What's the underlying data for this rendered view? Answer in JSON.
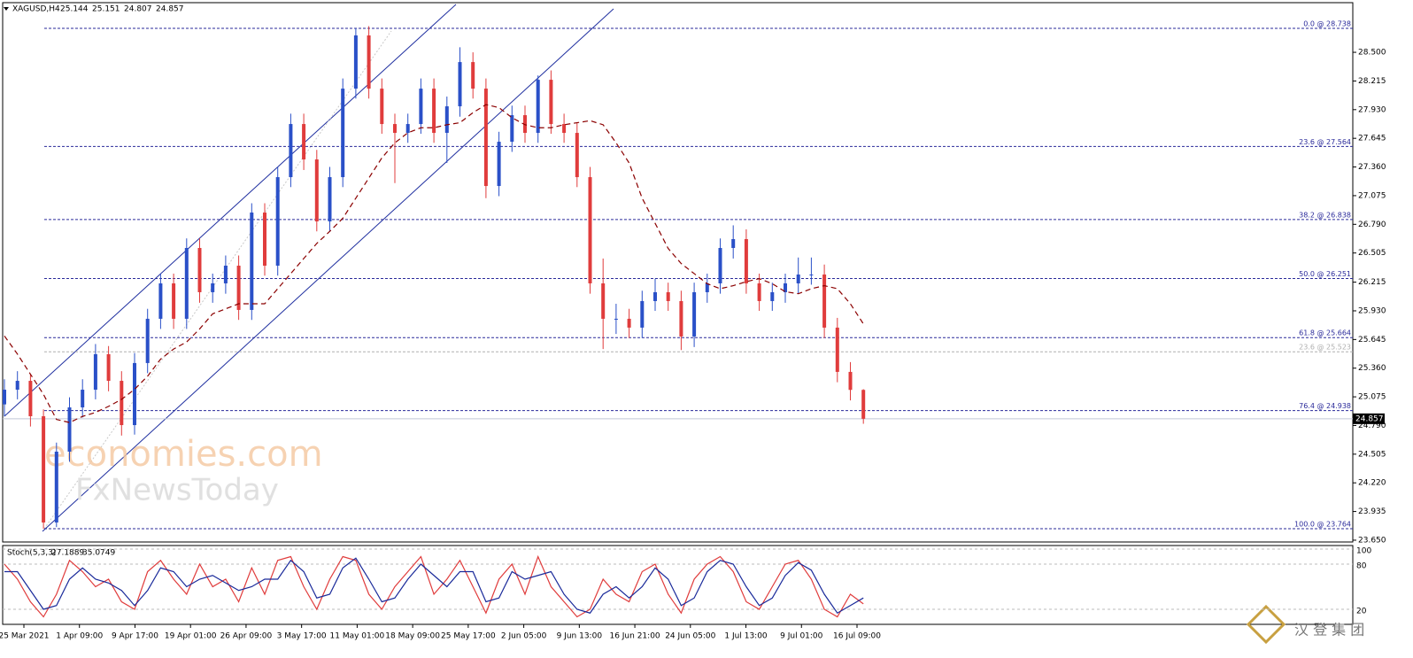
{
  "chart_data": [
    {
      "type": "candlestick",
      "title": "XAGUSD,H4",
      "header_values": [
        25.144,
        25.151,
        24.807,
        24.857
      ],
      "up_color": "#2a50c8",
      "down_color": "#e03c3c",
      "open": [
        25.0,
        25.146,
        25.234,
        24.882,
        23.826,
        24.53,
        24.97,
        25.146,
        25.499,
        25.234,
        24.794,
        25.411,
        25.851,
        26.203,
        25.851,
        26.555,
        26.115,
        26.203,
        26.379,
        25.939,
        26.907,
        26.379,
        27.259,
        27.787,
        27.435,
        26.819,
        27.259,
        28.139,
        28.668,
        28.139,
        27.787,
        27.699,
        27.787,
        28.139,
        27.699,
        27.963,
        28.403,
        28.139,
        27.171,
        27.611,
        27.875,
        27.699,
        28.227,
        27.787,
        27.699,
        27.259,
        26.203,
        25.851,
        25.851,
        25.763,
        26.027,
        26.115,
        26.027,
        25.675,
        26.115,
        26.203,
        26.555,
        26.643,
        26.203,
        26.027,
        26.115,
        26.203,
        26.291,
        26.291,
        25.763,
        25.323,
        25.144
      ],
      "high": [
        25.25,
        25.33,
        25.3,
        24.95,
        24.62,
        25.07,
        25.25,
        25.6,
        25.58,
        25.33,
        25.51,
        25.95,
        26.3,
        26.3,
        26.65,
        26.65,
        26.3,
        26.48,
        26.48,
        27.0,
        27.0,
        27.36,
        27.89,
        27.89,
        27.53,
        27.36,
        28.24,
        28.738,
        28.76,
        28.24,
        27.89,
        27.89,
        28.24,
        28.24,
        28.06,
        28.55,
        28.5,
        28.24,
        27.71,
        27.97,
        27.97,
        28.27,
        28.32,
        27.89,
        27.8,
        27.36,
        26.45,
        26.0,
        25.95,
        26.13,
        26.25,
        26.21,
        26.13,
        26.21,
        26.3,
        26.65,
        26.78,
        26.74,
        26.3,
        26.21,
        26.3,
        26.46,
        26.46,
        26.39,
        25.86,
        25.42,
        25.151
      ],
      "low": [
        24.88,
        25.05,
        24.78,
        23.764,
        23.78,
        24.43,
        24.87,
        25.05,
        25.13,
        24.69,
        24.7,
        25.31,
        25.75,
        25.75,
        25.75,
        26.01,
        26.01,
        26.1,
        25.84,
        25.84,
        26.28,
        26.28,
        27.16,
        27.33,
        26.72,
        26.72,
        27.16,
        28.04,
        28.04,
        27.69,
        27.2,
        27.6,
        27.69,
        27.6,
        27.4,
        27.86,
        28.04,
        27.05,
        27.07,
        27.51,
        27.6,
        27.6,
        27.69,
        27.6,
        27.16,
        26.1,
        25.55,
        25.7,
        25.66,
        25.66,
        25.93,
        25.93,
        25.54,
        25.57,
        26.01,
        26.1,
        26.45,
        26.1,
        25.93,
        25.93,
        26.01,
        26.1,
        26.19,
        25.66,
        25.22,
        25.04,
        24.807
      ],
      "close": [
        25.146,
        25.234,
        24.882,
        23.826,
        24.53,
        24.97,
        25.146,
        25.499,
        25.234,
        24.794,
        25.411,
        25.851,
        26.203,
        25.851,
        26.555,
        26.115,
        26.203,
        26.379,
        25.939,
        26.907,
        26.379,
        27.259,
        27.787,
        27.435,
        26.819,
        27.259,
        28.139,
        28.668,
        28.139,
        27.787,
        27.699,
        27.787,
        28.139,
        27.699,
        27.963,
        28.403,
        28.139,
        27.171,
        27.611,
        27.875,
        27.699,
        28.227,
        27.787,
        27.699,
        27.259,
        26.203,
        25.851,
        25.851,
        25.763,
        26.027,
        26.115,
        26.027,
        25.675,
        26.115,
        26.203,
        26.555,
        26.643,
        26.203,
        26.027,
        26.115,
        26.203,
        26.291,
        26.291,
        25.763,
        25.323,
        25.144,
        24.857
      ],
      "ma": {
        "color": "#8b0000",
        "values": [
          25.68,
          25.5,
          25.3,
          25.1,
          24.85,
          24.82,
          24.88,
          24.92,
          24.98,
          25.05,
          25.15,
          25.28,
          25.45,
          25.55,
          25.62,
          25.75,
          25.9,
          25.95,
          26.0,
          26.0,
          26.0,
          26.15,
          26.3,
          26.45,
          26.6,
          26.72,
          26.85,
          27.05,
          27.25,
          27.45,
          27.6,
          27.7,
          27.75,
          27.75,
          27.78,
          27.8,
          27.9,
          27.98,
          27.95,
          27.85,
          27.78,
          27.75,
          27.75,
          27.78,
          27.8,
          27.82,
          27.78,
          27.6,
          27.4,
          27.05,
          26.8,
          26.55,
          26.4,
          26.3,
          26.2,
          26.15,
          26.18,
          26.22,
          26.25,
          26.2,
          26.12,
          26.1,
          26.15,
          26.18,
          26.15,
          26.0,
          25.8
        ]
      },
      "x_labels": [
        "25 Mar 2021",
        "1 Apr 09:00",
        "9 Apr 17:00",
        "19 Apr 01:00",
        "26 Apr 09:00",
        "3 May 17:00",
        "11 May 01:00",
        "18 May 09:00",
        "25 May 17:00",
        "2 Jun 05:00",
        "9 Jun 13:00",
        "16 Jun 21:00",
        "24 Jun 05:00",
        "1 Jul 13:00",
        "9 Jul 01:00",
        "16 Jul 09:00"
      ],
      "ylim": [
        23.632,
        28.976
      ],
      "yticks": [
        {
          "value": 28.5,
          "label": "28.500"
        },
        {
          "value": 28.215,
          "label": "28.215"
        },
        {
          "value": 27.93,
          "label": "27.930"
        },
        {
          "value": 27.645,
          "label": "27.645"
        },
        {
          "value": 27.36,
          "label": "27.360"
        },
        {
          "value": 27.075,
          "label": "27.075"
        },
        {
          "value": 26.79,
          "label": "26.790"
        },
        {
          "value": 26.505,
          "label": "26.505"
        },
        {
          "value": 26.215,
          "label": "26.215"
        },
        {
          "value": 25.93,
          "label": "25.930"
        },
        {
          "value": 25.645,
          "label": "25.645"
        },
        {
          "value": 25.36,
          "label": "25.360"
        },
        {
          "value": 25.075,
          "label": "25.075"
        },
        {
          "value": 24.79,
          "label": "24.790"
        },
        {
          "value": 24.505,
          "label": "24.505"
        },
        {
          "value": 24.22,
          "label": "24.220"
        },
        {
          "value": 23.935,
          "label": "23.935"
        },
        {
          "value": 23.65,
          "label": "23.650"
        }
      ],
      "fib_color": "#2a2a9a",
      "fib_levels": [
        {
          "value": 28.738,
          "label": "0.0 @ 28.738"
        },
        {
          "value": 27.564,
          "label": "23.6 @ 27.564"
        },
        {
          "value": 26.838,
          "label": "38.2 @ 26.838"
        },
        {
          "value": 26.251,
          "label": "50.0 @ 26.251"
        },
        {
          "value": 25.664,
          "label": "61.8 @ 25.664"
        },
        {
          "value": 24.938,
          "label": "76.4 @ 24.938"
        },
        {
          "value": 23.764,
          "label": "100.0 @ 23.764"
        }
      ],
      "extra_level": {
        "value": 25.523,
        "label": "23.6 @ 25.523",
        "color": "#b0b0b0"
      },
      "last_price": 24.857,
      "watermark": [
        "economies.com",
        "FxNewsToday"
      ],
      "logo": "汉 登 集 团"
    },
    {
      "type": "line",
      "title": "Stoch(5,3,3)",
      "readout": [
        27.1889,
        35.0749
      ],
      "ylim": [
        0,
        100
      ],
      "yticks": [
        100,
        80,
        20
      ],
      "series": [
        {
          "color": "#e03c3c",
          "values": [
            80,
            60,
            30,
            10,
            40,
            85,
            70,
            50,
            60,
            30,
            20,
            70,
            85,
            60,
            40,
            80,
            50,
            60,
            30,
            75,
            40,
            85,
            90,
            50,
            20,
            60,
            90,
            85,
            40,
            20,
            50,
            70,
            90,
            40,
            60,
            85,
            50,
            15,
            60,
            80,
            40,
            90,
            50,
            30,
            10,
            20,
            60,
            40,
            30,
            70,
            80,
            40,
            15,
            60,
            80,
            90,
            70,
            30,
            20,
            50,
            80,
            85,
            60,
            20,
            10,
            40,
            27.1889
          ]
        },
        {
          "color": "#1a2a9a",
          "values": [
            70,
            70,
            45,
            20,
            25,
            60,
            75,
            60,
            55,
            45,
            25,
            45,
            75,
            70,
            50,
            60,
            65,
            55,
            45,
            50,
            60,
            60,
            85,
            70,
            35,
            40,
            75,
            88,
            60,
            30,
            35,
            60,
            80,
            65,
            50,
            70,
            70,
            30,
            35,
            70,
            60,
            65,
            70,
            40,
            20,
            15,
            40,
            50,
            35,
            50,
            75,
            60,
            25,
            35,
            70,
            85,
            80,
            50,
            25,
            35,
            65,
            82,
            72,
            40,
            15,
            25,
            35.0749
          ]
        }
      ]
    }
  ]
}
